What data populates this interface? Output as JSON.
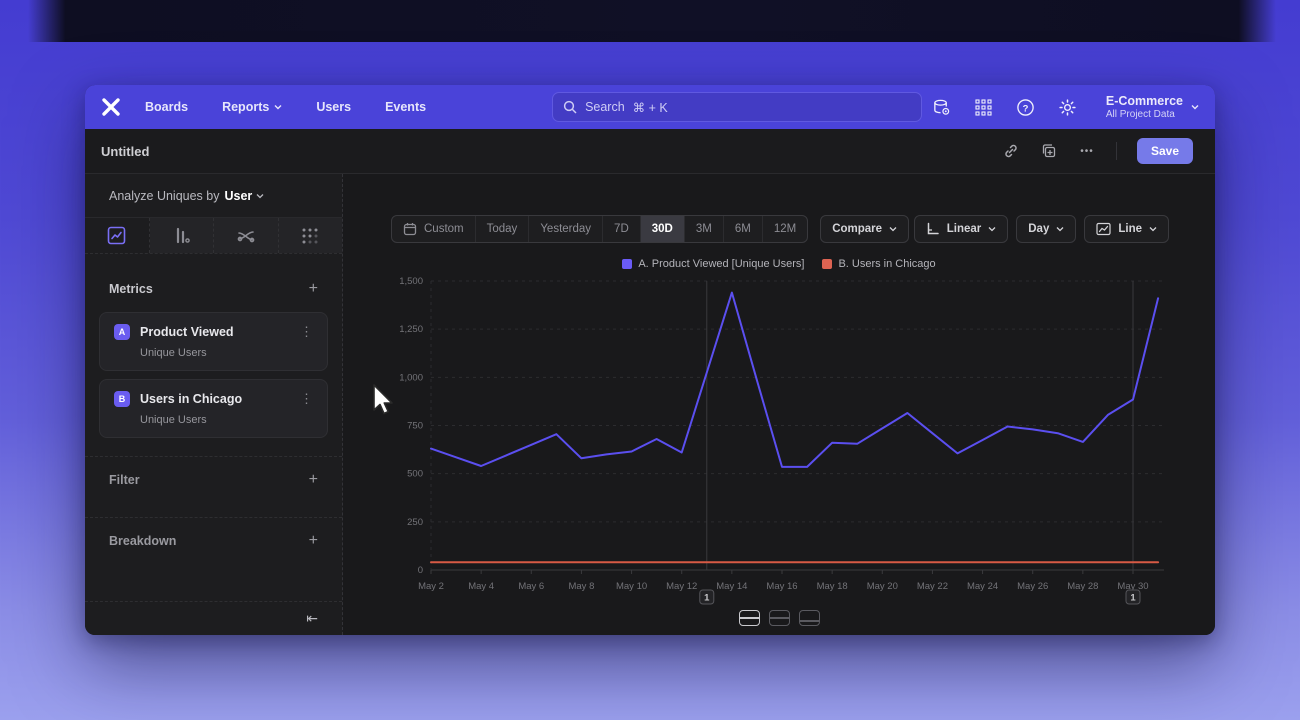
{
  "icons": {
    "ellipsis": "•••",
    "kebab": "⋮",
    "plus": "+",
    "collapse": "⇤"
  },
  "nav": {
    "links": [
      "Boards",
      "Reports",
      "Users",
      "Events"
    ],
    "search_label": "Search",
    "search_shortcut": "⌘ + K",
    "project": {
      "name": "E-Commerce",
      "subtitle": "All Project Data"
    }
  },
  "header": {
    "title": "Untitled",
    "save_label": "Save"
  },
  "sidebar": {
    "analyze_label": "Analyze Uniques by",
    "analyze_value": "User",
    "metrics_title": "Metrics",
    "metrics": [
      {
        "badge": "A",
        "name": "Product Viewed",
        "sub": "Unique Users"
      },
      {
        "badge": "B",
        "name": "Users in Chicago",
        "sub": "Unique Users"
      }
    ],
    "filter_title": "Filter",
    "breakdown_title": "Breakdown"
  },
  "toolbar": {
    "ranges": [
      "Custom",
      "Today",
      "Yesterday",
      "7D",
      "30D",
      "3M",
      "6M",
      "12M"
    ],
    "selected_range": "30D",
    "compare_label": "Compare",
    "scale_label": "Linear",
    "interval_label": "Day",
    "chart_type_label": "Line"
  },
  "legend": [
    {
      "label": "A. Product Viewed [Unique Users]",
      "color": "#6a5bf7"
    },
    {
      "label": "B. Users in Chicago",
      "color": "#dd6352"
    }
  ],
  "chart_data": {
    "type": "line",
    "x": [
      "May 2",
      "May 3",
      "May 4",
      "May 5",
      "May 6",
      "May 7",
      "May 8",
      "May 9",
      "May 10",
      "May 11",
      "May 12",
      "May 13",
      "May 14",
      "May 15",
      "May 16",
      "May 17",
      "May 18",
      "May 19",
      "May 20",
      "May 21",
      "May 22",
      "May 23",
      "May 24",
      "May 25",
      "May 26",
      "May 27",
      "May 28",
      "May 29",
      "May 30",
      "May 31"
    ],
    "series": [
      {
        "name": "A. Product Viewed [Unique Users]",
        "color": "#5b4ff0",
        "values": [
          630,
          585,
          540,
          595,
          650,
          705,
          580,
          600,
          615,
          680,
          610,
          1025,
          1440,
          985,
          535,
          535,
          660,
          655,
          735,
          815,
          710,
          605,
          675,
          745,
          730,
          710,
          665,
          805,
          885,
          1410
        ]
      },
      {
        "name": "B. Users in Chicago",
        "color": "#d85a45",
        "values": [
          40,
          40,
          40,
          40,
          40,
          40,
          40,
          40,
          40,
          40,
          40,
          40,
          40,
          40,
          40,
          40,
          40,
          40,
          40,
          40,
          40,
          40,
          40,
          40,
          40,
          40,
          40,
          40,
          40,
          40
        ]
      }
    ],
    "ylim": [
      0,
      1500
    ],
    "yticks": [
      0,
      250,
      500,
      750,
      1000,
      1250,
      1500
    ],
    "ytick_labels": [
      "0",
      "250",
      "500",
      "750",
      "1,000",
      "1,250",
      "1,500"
    ],
    "xtick_labels": [
      "May 2",
      "May 4",
      "May 6",
      "May 8",
      "May 10",
      "May 12",
      "May 14",
      "May 16",
      "May 18",
      "May 20",
      "May 22",
      "May 24",
      "May 26",
      "May 28",
      "May 30"
    ],
    "grid": "dashed-horizontal",
    "legend_position": "top-center",
    "annotations": [
      {
        "label": "1",
        "day_index": 11
      },
      {
        "label": "1",
        "day_index": 28
      }
    ]
  }
}
